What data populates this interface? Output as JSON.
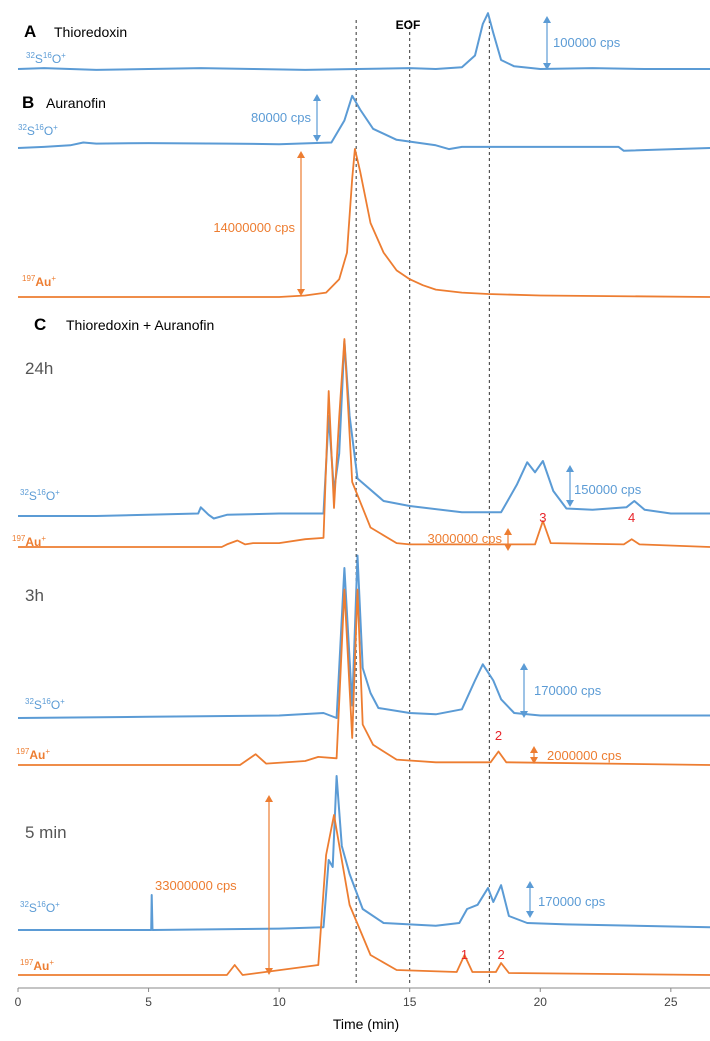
{
  "chart_data": {
    "type": "line",
    "xlabel": "Time (min)",
    "xlim": [
      0,
      26.5
    ],
    "xticks": [
      "0",
      "5",
      "10",
      "15",
      "20",
      "25"
    ],
    "eof_label": "EOF",
    "markers": [
      12.95,
      15.0,
      18.05
    ],
    "colors": {
      "sulfur": "#5b9bd5",
      "gold": "#ed7d31",
      "peak_numbers": "#e8262b"
    },
    "panels": [
      {
        "letter": "A",
        "title": "Thioredoxin",
        "traces": [
          {
            "element": "S",
            "m1": "32",
            "m2": "16",
            "ion": "O",
            "charge": "+",
            "baseline": 0.0,
            "scale": 100000,
            "points": [
              [
                0,
                0
              ],
              [
                1,
                0.01
              ],
              [
                3,
                -0.01
              ],
              [
                5,
                0
              ],
              [
                7,
                0.01
              ],
              [
                9,
                0
              ],
              [
                11,
                -0.01
              ],
              [
                13,
                0
              ],
              [
                15,
                0.01
              ],
              [
                16,
                0
              ],
              [
                17,
                0.02
              ],
              [
                17.5,
                0.15
              ],
              [
                17.8,
                0.5
              ],
              [
                18,
                0.62
              ],
              [
                18.2,
                0.4
              ],
              [
                18.5,
                0.1
              ],
              [
                19,
                0.03
              ],
              [
                20,
                0
              ],
              [
                22,
                0.01
              ],
              [
                24,
                0
              ],
              [
                26.5,
                0
              ]
            ]
          }
        ],
        "scale_bars": [
          {
            "label": "100000 cps",
            "color": "sulfur"
          }
        ]
      },
      {
        "letter": "B",
        "title": "Auranofin",
        "traces": [
          {
            "element": "S",
            "m1": "32",
            "m2": "16",
            "ion": "O",
            "charge": "+",
            "baseline": 0.0,
            "scale": 80000,
            "points": [
              [
                0,
                0
              ],
              [
                1,
                0.02
              ],
              [
                2,
                0.05
              ],
              [
                2.5,
                0.1
              ],
              [
                3,
                0.08
              ],
              [
                5,
                0.09
              ],
              [
                8,
                0.08
              ],
              [
                10,
                0.07
              ],
              [
                12,
                0.1
              ],
              [
                12.5,
                0.5
              ],
              [
                12.8,
                0.95
              ],
              [
                13.1,
                0.7
              ],
              [
                13.6,
                0.35
              ],
              [
                14.5,
                0.15
              ],
              [
                16,
                0.05
              ],
              [
                16.5,
                -0.02
              ],
              [
                17,
                0.02
              ],
              [
                19,
                0.02
              ],
              [
                23,
                0.02
              ],
              [
                23.2,
                -0.05
              ],
              [
                26.5,
                0
              ]
            ]
          },
          {
            "element": "Au",
            "m1": "197",
            "m2": "",
            "ion": "",
            "charge": "+",
            "baseline": 0.0,
            "scale": 14000000,
            "points": [
              [
                0,
                0
              ],
              [
                8,
                0
              ],
              [
                10,
                0
              ],
              [
                11,
                0.01
              ],
              [
                11.8,
                0.03
              ],
              [
                12.3,
                0.12
              ],
              [
                12.6,
                0.3
              ],
              [
                12.8,
                0.8
              ],
              [
                12.9,
                1.0
              ],
              [
                13.1,
                0.85
              ],
              [
                13.5,
                0.5
              ],
              [
                14,
                0.3
              ],
              [
                14.5,
                0.18
              ],
              [
                15,
                0.12
              ],
              [
                15.5,
                0.08
              ],
              [
                16,
                0.05
              ],
              [
                17,
                0.03
              ],
              [
                18,
                0.02
              ],
              [
                20,
                0.01
              ],
              [
                26.5,
                0
              ]
            ]
          }
        ],
        "scale_bars": [
          {
            "label": "80000 cps",
            "color": "sulfur"
          },
          {
            "label": "14000000 cps",
            "color": "gold"
          }
        ]
      },
      {
        "letter": "C",
        "title": "Thioredoxin + Auranofin",
        "subtitle": "24h",
        "traces": [
          {
            "element": "S",
            "m1": "32",
            "m2": "16",
            "ion": "O",
            "charge": "+",
            "baseline": 0.0,
            "scale": 150000,
            "points": [
              [
                0,
                0
              ],
              [
                3,
                0
              ],
              [
                6.9,
                0.02
              ],
              [
                7,
                0.07
              ],
              [
                7.3,
                0.01
              ],
              [
                7.5,
                -0.02
              ],
              [
                8,
                0.01
              ],
              [
                10,
                0.02
              ],
              [
                11.7,
                0.02
              ],
              [
                11.9,
                0.8
              ],
              [
                12.1,
                0.2
              ],
              [
                12.3,
                0.5
              ],
              [
                12.5,
                1.4
              ],
              [
                12.7,
                0.8
              ],
              [
                13,
                0.3
              ],
              [
                14,
                0.12
              ],
              [
                15,
                0.08
              ],
              [
                17,
                0.03
              ],
              [
                18.5,
                0.03
              ],
              [
                19.1,
                0.25
              ],
              [
                19.5,
                0.43
              ],
              [
                19.8,
                0.35
              ],
              [
                20.1,
                0.44
              ],
              [
                20.5,
                0.2
              ],
              [
                21,
                0.06
              ],
              [
                22,
                0.05
              ],
              [
                23.3,
                0.07
              ],
              [
                23.6,
                0.12
              ],
              [
                24,
                0.05
              ],
              [
                25,
                0.02
              ],
              [
                26.5,
                0.02
              ]
            ]
          },
          {
            "element": "Au",
            "m1": "197",
            "m2": "",
            "ion": "",
            "charge": "+",
            "baseline": 0.0,
            "scale": 3000000,
            "points": [
              [
                0,
                0
              ],
              [
                7.8,
                0
              ],
              [
                8,
                0.02
              ],
              [
                8.4,
                0.05
              ],
              [
                8.7,
                0.02
              ],
              [
                9,
                0.03
              ],
              [
                10,
                0.03
              ],
              [
                11,
                0.06
              ],
              [
                11.7,
                0.07
              ],
              [
                11.9,
                1.2
              ],
              [
                12.1,
                0.3
              ],
              [
                12.3,
                1.0
              ],
              [
                12.5,
                1.6
              ],
              [
                12.8,
                0.5
              ],
              [
                13.5,
                0.15
              ],
              [
                14.5,
                0.03
              ],
              [
                15,
                0.02
              ],
              [
                19.8,
                0.02
              ],
              [
                20.1,
                0.2
              ],
              [
                20.4,
                0.03
              ],
              [
                23.2,
                0.02
              ],
              [
                23.5,
                0.06
              ],
              [
                23.8,
                0.02
              ],
              [
                26.5,
                0
              ]
            ]
          }
        ],
        "scale_bars": [
          {
            "label": "150000 cps",
            "color": "sulfur"
          },
          {
            "label": "3000000 cps",
            "color": "gold"
          }
        ],
        "peak_numbers": [
          {
            "label": "3",
            "x": 20.1
          },
          {
            "label": "4",
            "x": 23.5
          }
        ]
      },
      {
        "subtitle": "3h",
        "traces": [
          {
            "element": "S",
            "m1": "32",
            "m2": "16",
            "ion": "O",
            "charge": "+",
            "baseline": 0.0,
            "scale": 170000,
            "points": [
              [
                0,
                0
              ],
              [
                5,
                0.01
              ],
              [
                10,
                0.02
              ],
              [
                11.7,
                0.04
              ],
              [
                12.2,
                0.0
              ],
              [
                12.5,
                1.2
              ],
              [
                12.8,
                0.1
              ],
              [
                13.0,
                1.3
              ],
              [
                13.2,
                0.4
              ],
              [
                13.5,
                0.2
              ],
              [
                13.8,
                0.08
              ],
              [
                15,
                0.04
              ],
              [
                16,
                0.03
              ],
              [
                17,
                0.07
              ],
              [
                17.5,
                0.3
              ],
              [
                17.8,
                0.43
              ],
              [
                18.2,
                0.3
              ],
              [
                18.5,
                0.15
              ],
              [
                19,
                0.04
              ],
              [
                20,
                0.02
              ],
              [
                26.5,
                0.02
              ]
            ]
          },
          {
            "element": "Au",
            "m1": "197",
            "m2": "",
            "ion": "",
            "charge": "+",
            "baseline": 0.0,
            "scale": 2000000,
            "points": [
              [
                0,
                0
              ],
              [
                8.5,
                0
              ],
              [
                9.1,
                0.08
              ],
              [
                9.5,
                0.01
              ],
              [
                11,
                0.03
              ],
              [
                11.5,
                0.06
              ],
              [
                12.2,
                0.05
              ],
              [
                12.5,
                1.3
              ],
              [
                12.8,
                0.2
              ],
              [
                13,
                1.3
              ],
              [
                13.2,
                0.3
              ],
              [
                13.6,
                0.15
              ],
              [
                14.5,
                0.04
              ],
              [
                16,
                0.02
              ],
              [
                18.1,
                0.02
              ],
              [
                18.4,
                0.1
              ],
              [
                18.7,
                0.02
              ],
              [
                26.5,
                0
              ]
            ]
          }
        ],
        "scale_bars": [
          {
            "label": "170000 cps",
            "color": "sulfur"
          },
          {
            "label": "2000000 cps",
            "color": "gold"
          }
        ],
        "peak_numbers": [
          {
            "label": "2",
            "x": 18.4
          }
        ]
      },
      {
        "subtitle": "5 min",
        "traces": [
          {
            "element": "S",
            "m1": "32",
            "m2": "16",
            "ion": "O",
            "charge": "+",
            "baseline": 0.0,
            "scale": 170000,
            "points": [
              [
                0,
                0
              ],
              [
                5.1,
                0
              ],
              [
                5.12,
                0.25
              ],
              [
                5.15,
                0
              ],
              [
                10,
                0.01
              ],
              [
                11.7,
                0.02
              ],
              [
                11.9,
                0.5
              ],
              [
                12.05,
                0.45
              ],
              [
                12.2,
                1.1
              ],
              [
                12.4,
                0.6
              ],
              [
                12.7,
                0.4
              ],
              [
                13.2,
                0.15
              ],
              [
                14,
                0.05
              ],
              [
                16,
                0.03
              ],
              [
                16.9,
                0.05
              ],
              [
                17.2,
                0.15
              ],
              [
                17.6,
                0.18
              ],
              [
                18,
                0.3
              ],
              [
                18.2,
                0.2
              ],
              [
                18.5,
                0.32
              ],
              [
                18.8,
                0.1
              ],
              [
                19.5,
                0.05
              ],
              [
                21,
                0.04
              ],
              [
                26.5,
                0.02
              ]
            ]
          },
          {
            "element": "Au",
            "m1": "197",
            "m2": "",
            "ion": "",
            "charge": "+",
            "baseline": 0.0,
            "scale": 33000000,
            "points": [
              [
                0,
                0
              ],
              [
                8,
                0
              ],
              [
                8.3,
                0.01
              ],
              [
                8.6,
                0
              ],
              [
                11.5,
                0.01
              ],
              [
                11.8,
                0.12
              ],
              [
                12.1,
                0.16
              ],
              [
                12.3,
                0.13
              ],
              [
                12.7,
                0.07
              ],
              [
                13.5,
                0.02
              ],
              [
                14.5,
                0.005
              ],
              [
                16.8,
                0.003
              ],
              [
                17.1,
                0.02
              ],
              [
                17.4,
                0.003
              ],
              [
                18.3,
                0.003
              ],
              [
                18.5,
                0.012
              ],
              [
                18.8,
                0.002
              ],
              [
                26.5,
                0
              ]
            ]
          }
        ],
        "scale_bars": [
          {
            "label": "170000 cps",
            "color": "sulfur"
          },
          {
            "label": "33000000 cps",
            "color": "gold"
          }
        ],
        "peak_numbers": [
          {
            "label": "1",
            "x": 17.1
          },
          {
            "label": "2",
            "x": 18.5
          }
        ]
      }
    ]
  }
}
